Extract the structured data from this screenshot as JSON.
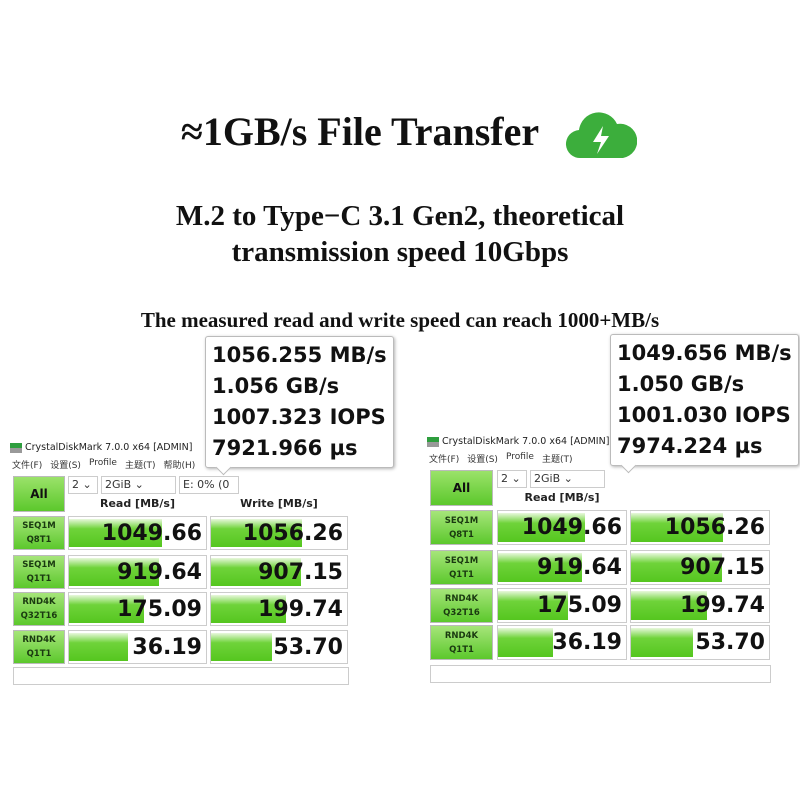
{
  "header": {
    "title": "≈1GB/s File Transfer",
    "icon": "cloud-lightning-icon",
    "icon_color": "#3cae3c",
    "subtitle_line1": "M.2 to Type−C 3.1 Gen2, theoretical",
    "subtitle_line2": "transmission speed 10Gbps",
    "tagline": "The measured read and write speed can reach 1000+MB/s"
  },
  "panels": [
    {
      "window_title": "CrystalDiskMark 7.0.0 x64 [ADMIN]",
      "menu": [
        "文件(F)",
        "设置(S)",
        "Profile",
        "主题(T)",
        "帮助(H)"
      ],
      "all_button": "All",
      "count": "2",
      "size": "2GiB",
      "drive": "E: 0% (0",
      "read_header": "Read [MB/s]",
      "write_header": "Write [MB/s]",
      "rows": [
        {
          "l1": "SEQ1M",
          "l2": "Q8T1",
          "read": "1049.66",
          "write": "1056.26",
          "read_fill": 0.68,
          "write_fill": 0.67
        },
        {
          "l1": "SEQ1M",
          "l2": "Q1T1",
          "read": "919.64",
          "write": "907.15",
          "read_fill": 0.66,
          "write_fill": 0.66
        },
        {
          "l1": "RND4K",
          "l2": "Q32T16",
          "read": "175.09",
          "write": "199.74",
          "read_fill": 0.55,
          "write_fill": 0.55
        },
        {
          "l1": "RND4K",
          "l2": "Q1T1",
          "read": "36.19",
          "write": "53.70",
          "read_fill": 0.43,
          "write_fill": 0.45
        }
      ],
      "tooltip": [
        "1056.255 MB/s",
        "1.056 GB/s",
        "1007.323 IOPS",
        "7921.966 µs"
      ]
    },
    {
      "window_title": "CrystalDiskMark 7.0.0 x64 [ADMIN]",
      "menu": [
        "文件(F)",
        "设置(S)",
        "Profile",
        "主题(T)"
      ],
      "all_button": "All",
      "count": "2",
      "size": "2GiB",
      "drive": "",
      "read_header": "Read [MB/s]",
      "write_header": "",
      "rows": [
        {
          "l1": "SEQ1M",
          "l2": "Q8T1",
          "read": "1049.66",
          "write": "1056.26",
          "read_fill": 0.68,
          "write_fill": 0.67
        },
        {
          "l1": "SEQ1M",
          "l2": "Q1T1",
          "read": "919.64",
          "write": "907.15",
          "read_fill": 0.66,
          "write_fill": 0.66
        },
        {
          "l1": "RND4K",
          "l2": "Q32T16",
          "read": "175.09",
          "write": "199.74",
          "read_fill": 0.55,
          "write_fill": 0.55
        },
        {
          "l1": "RND4K",
          "l2": "Q1T1",
          "read": "36.19",
          "write": "53.70",
          "read_fill": 0.43,
          "write_fill": 0.45
        }
      ],
      "tooltip": [
        "1049.656 MB/s",
        "1.050 GB/s",
        "1001.030 IOPS",
        "7974.224 µs"
      ]
    }
  ]
}
